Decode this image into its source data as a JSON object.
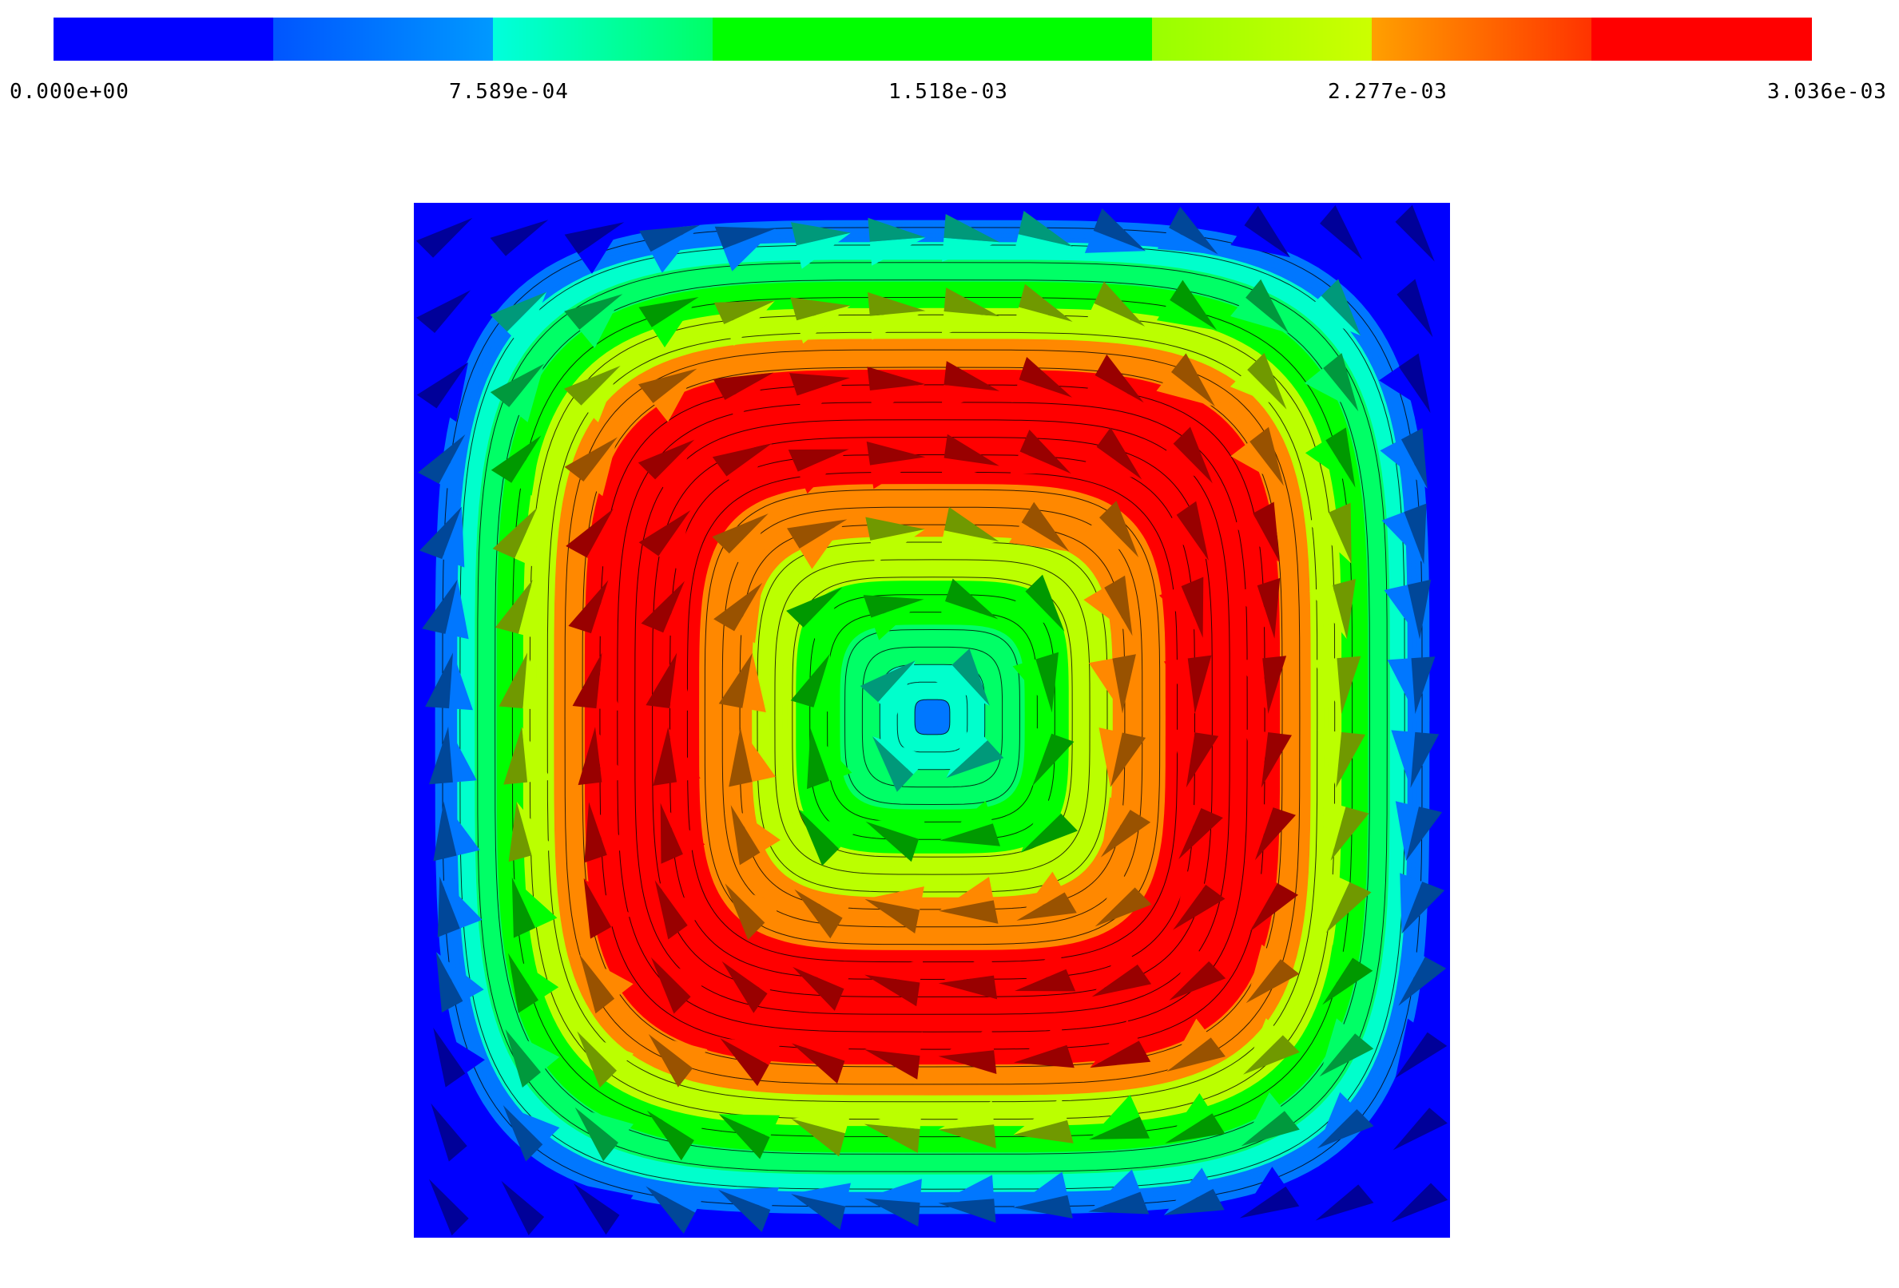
{
  "chart_data": {
    "type": "heatmap",
    "title": "",
    "colorbar": {
      "ticks": [
        "0.000e+00",
        "7.589e-04",
        "1.518e-03",
        "2.277e-03",
        "3.036e-03"
      ],
      "range": [
        0.0,
        0.003036
      ],
      "segments": [
        {
          "from": "#0000ff",
          "to": "#0000ff"
        },
        {
          "from": "#0055ff",
          "to": "#0099ff"
        },
        {
          "from": "#00ffdd",
          "to": "#00ff66"
        },
        {
          "from": "#00ff00",
          "to": "#00ff00"
        },
        {
          "from": "#00ff00",
          "to": "#00ff00"
        },
        {
          "from": "#99ff00",
          "to": "#ccff00"
        },
        {
          "from": "#ffa000",
          "to": "#ff3300"
        },
        {
          "from": "#ff0000",
          "to": "#ff0000"
        }
      ]
    },
    "field": {
      "domain_x": [
        0,
        1
      ],
      "domain_y": [
        0,
        1
      ],
      "center": [
        0.5,
        0.5
      ],
      "peak_magnitude": 0.003036,
      "rotation": "clockwise",
      "contour_levels": 28,
      "arrow_grid": 14
    }
  }
}
